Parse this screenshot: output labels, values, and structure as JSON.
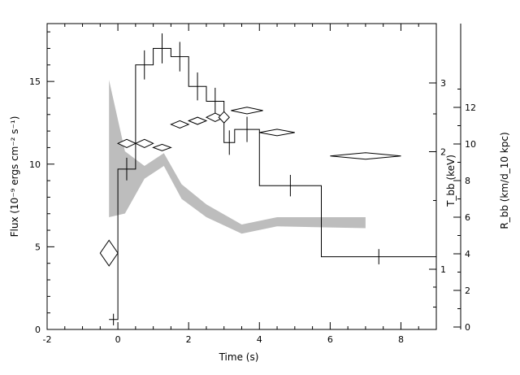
{
  "chart_data": {
    "type": "line",
    "xlabel": "Time (s)",
    "ylabel_left": "Flux (10⁻⁹ ergs cm⁻² s⁻¹)",
    "ylabel_right_inner": "T_bb (keV)",
    "ylabel_right_outer": "R_bb (km/d_10 kpc)",
    "xlim": [
      -2,
      9
    ],
    "ylim_flux": [
      0,
      18.5
    ],
    "xticks": [
      "-2",
      "0",
      "2",
      "4",
      "6",
      "8"
    ],
    "yticks_flux": [
      "0",
      "5",
      "10",
      "15"
    ],
    "kT_axis": {
      "scale": "log",
      "ticks": [
        "1",
        "2",
        "3"
      ]
    },
    "R_axis": {
      "range": [
        0,
        13.6
      ],
      "ticks": [
        "0",
        "2",
        "4",
        "6",
        "8",
        "10",
        "12"
      ]
    },
    "flux_histogram": [
      {
        "x0": -0.25,
        "x1": 0.0,
        "y": 0.6
      },
      {
        "x0": 0.0,
        "x1": 0.5,
        "y": 9.7
      },
      {
        "x0": 0.5,
        "x1": 1.0,
        "y": 16.0
      },
      {
        "x0": 1.0,
        "x1": 1.5,
        "y": 17.0
      },
      {
        "x0": 1.5,
        "x1": 2.0,
        "y": 16.5
      },
      {
        "x0": 2.0,
        "x1": 2.5,
        "y": 14.7
      },
      {
        "x0": 2.5,
        "x1": 3.0,
        "y": 13.8
      },
      {
        "x0": 3.0,
        "x1": 3.3,
        "y": 11.3
      },
      {
        "x0": 3.3,
        "x1": 4.0,
        "y": 12.1
      },
      {
        "x0": 4.0,
        "x1": 5.75,
        "y": 8.7
      },
      {
        "x0": 5.75,
        "x1": 9.0,
        "y": 4.4
      }
    ],
    "kT_points": [
      {
        "t": -0.25,
        "kT": 1.1,
        "xerr": 0.25,
        "yerr": 0.08
      },
      {
        "t": 0.25,
        "kT": 2.1,
        "xerr": 0.25,
        "yerr": 0.05
      },
      {
        "t": 0.75,
        "kT": 2.1,
        "xerr": 0.25,
        "yerr": 0.05
      },
      {
        "t": 1.25,
        "kT": 2.05,
        "xerr": 0.25,
        "yerr": 0.03
      },
      {
        "t": 1.75,
        "kT": 2.35,
        "xerr": 0.25,
        "yerr": 0.05
      },
      {
        "t": 2.25,
        "kT": 2.4,
        "xerr": 0.25,
        "yerr": 0.05
      },
      {
        "t": 2.75,
        "kT": 2.45,
        "xerr": 0.25,
        "yerr": 0.06
      },
      {
        "t": 3.0,
        "kT": 2.45,
        "xerr": 0.15,
        "yerr": 0.08
      },
      {
        "t": 3.65,
        "kT": 2.55,
        "xerr": 0.45,
        "yerr": 0.05
      },
      {
        "t": 4.5,
        "kT": 2.24,
        "xerr": 0.5,
        "yerr": 0.04
      },
      {
        "t": 7.0,
        "kT": 1.95,
        "xerr": 1.0,
        "yerr": 0.03
      }
    ],
    "R_band": [
      {
        "t": -0.25,
        "lo": 6.0,
        "hi": 13.5
      },
      {
        "t": 0.2,
        "lo": 6.2,
        "hi": 9.6
      },
      {
        "t": 0.75,
        "lo": 8.1,
        "hi": 8.8
      },
      {
        "t": 1.3,
        "lo": 8.8,
        "hi": 9.5
      },
      {
        "t": 1.8,
        "lo": 7.0,
        "hi": 7.8
      },
      {
        "t": 2.5,
        "lo": 6.0,
        "hi": 6.7
      },
      {
        "t": 3.5,
        "lo": 5.1,
        "hi": 5.6
      },
      {
        "t": 4.5,
        "lo": 5.5,
        "hi": 6.0
      },
      {
        "t": 7.0,
        "lo": 5.4,
        "hi": 6.0
      }
    ]
  }
}
